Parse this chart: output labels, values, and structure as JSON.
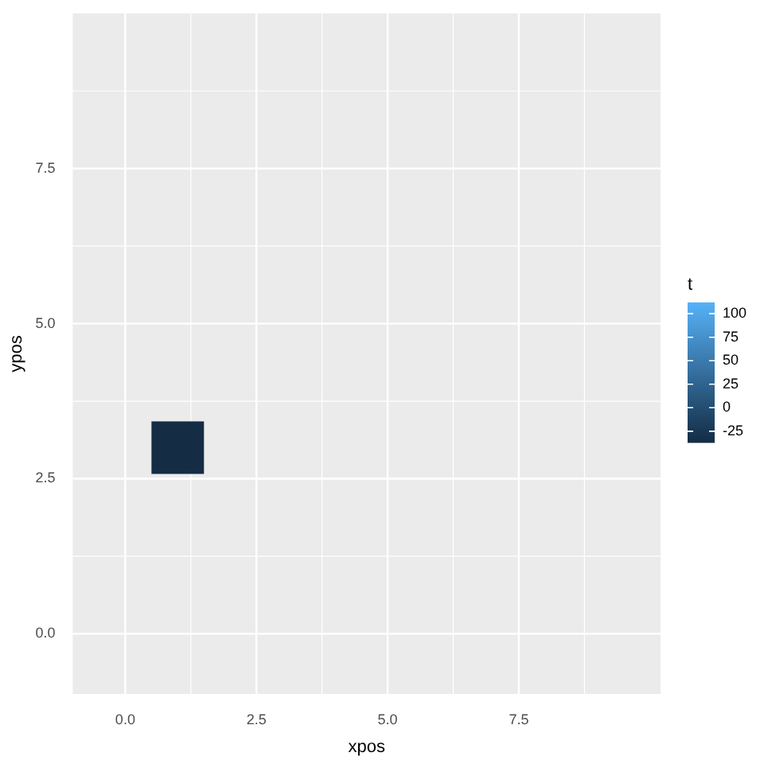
{
  "chart_data": {
    "type": "scatter",
    "marker": "square",
    "xlabel": "xpos",
    "ylabel": "ypos",
    "clabel": "t",
    "xlim": [
      -1,
      10.2
    ],
    "ylim": [
      -0.97,
      10
    ],
    "xticks": [
      {
        "value": 0,
        "label": "0.0"
      },
      {
        "value": 2.5,
        "label": "2.5"
      },
      {
        "value": 5,
        "label": "5.0"
      },
      {
        "value": 7.5,
        "label": "7.5"
      }
    ],
    "yticks": [
      {
        "value": 0,
        "label": "0.0"
      },
      {
        "value": 2.5,
        "label": "2.5"
      },
      {
        "value": 5,
        "label": "5.0"
      },
      {
        "value": 7.5,
        "label": "7.5"
      }
    ],
    "clim": [
      -37,
      112
    ],
    "cticks": [
      -25,
      0,
      25,
      50,
      75,
      100
    ],
    "grid": true,
    "series": [
      {
        "x": [
          1
        ],
        "values": [
          3
        ],
        "cvalues": [
          -35
        ]
      }
    ]
  }
}
